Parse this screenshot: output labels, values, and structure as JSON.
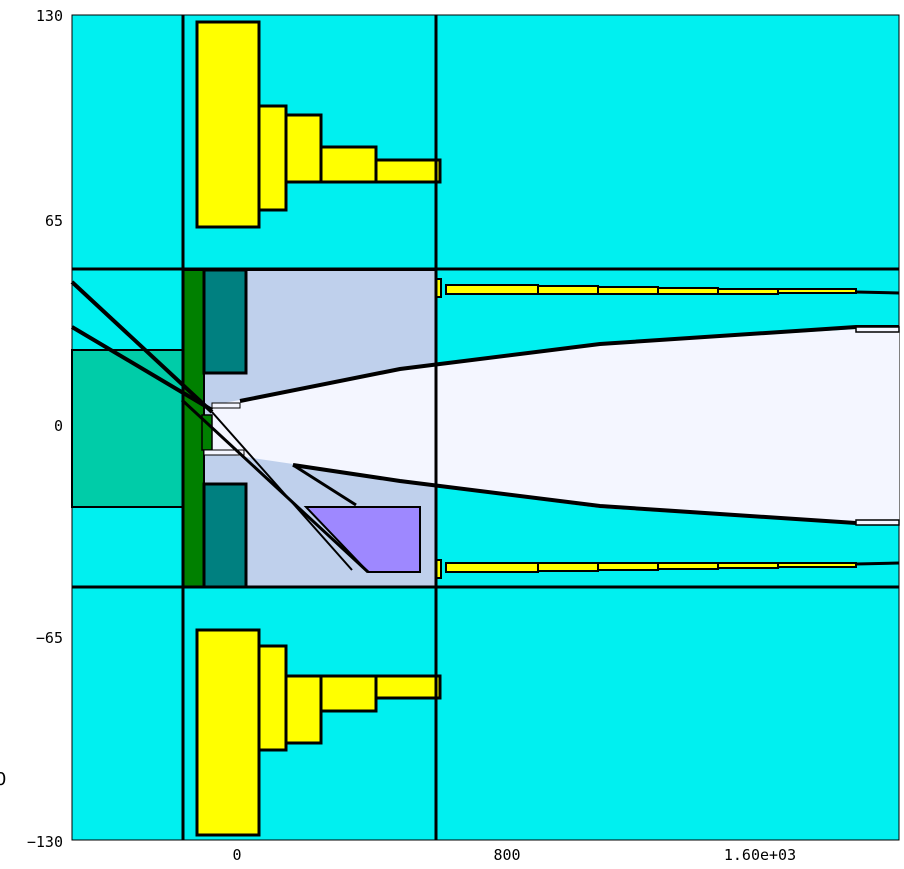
{
  "diagram": {
    "x_ticks": [
      "0",
      "800",
      "1.60e+03"
    ],
    "y_ticks": [
      "130",
      "65",
      "0",
      "−65",
      "−130"
    ],
    "stray_label": "0",
    "colors": {
      "background": "#00f0f0",
      "frame": "#000000",
      "yellow_block": "#ffff00",
      "dark_teal": "#008080",
      "green_plate": "#008000",
      "light_blue_region": "#bfd0ec",
      "bore": "#f4f6ff",
      "violet_block": "#9e88ff",
      "left_slab": "#00cca8"
    }
  }
}
